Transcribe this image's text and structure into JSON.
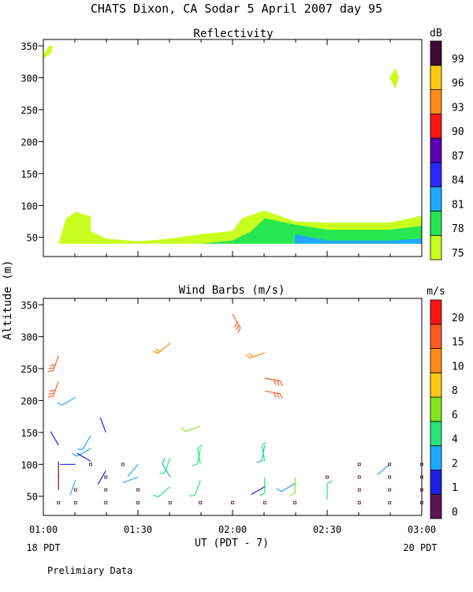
{
  "title": "CHATS Dixon, CA  Sodar   5 April 2007  day  95",
  "footer_note": "Prelimiary Data",
  "y_axis_label": "Altitude (m)",
  "x_axis": {
    "label": "UT  (PDT - 7)",
    "ticks": [
      "01:00",
      "01:30",
      "02:00",
      "02:30",
      "03:00"
    ],
    "left_local": "18 PDT",
    "right_local": "20 PDT",
    "range_hours": [
      1.0,
      3.0
    ]
  },
  "colors": {
    "dB": [
      "#c8ff1e",
      "#28e650",
      "#1eaaff",
      "#2828ff",
      "#5a00b4",
      "#ff1414",
      "#ff8c14",
      "#ffc814",
      "#3c0a32"
    ],
    "wind": [
      "#5a1450",
      "#1e1ee6",
      "#1eaaff",
      "#28e678",
      "#82e61e",
      "#ffc814",
      "#ff8c14",
      "#ff5a1e",
      "#ff1414"
    ]
  },
  "chart_data": [
    {
      "type": "heatmap",
      "title": "Reflectivity",
      "colorbar_label": "dB",
      "colorbar_levels": [
        75,
        78,
        81,
        84,
        87,
        90,
        93,
        96,
        99
      ],
      "ylim": [
        20,
        360
      ],
      "yticks": [
        50,
        100,
        150,
        200,
        250,
        300,
        350
      ],
      "xlim": [
        1.0,
        3.0
      ],
      "regions": [
        {
          "level": 75,
          "points": [
            [
              1.0,
              335
            ],
            [
              1.03,
              350
            ],
            [
              1.05,
              350
            ],
            [
              1.04,
              338
            ],
            [
              1.0,
              330
            ]
          ]
        },
        {
          "level": 75,
          "points": [
            [
              2.83,
              300
            ],
            [
              2.86,
              315
            ],
            [
              2.88,
              300
            ],
            [
              2.86,
              283
            ]
          ]
        },
        {
          "level": 75,
          "points": [
            [
              1.08,
              40
            ],
            [
              1.12,
              80
            ],
            [
              1.17,
              90
            ],
            [
              1.25,
              83
            ],
            [
              1.25,
              60
            ],
            [
              1.33,
              48
            ],
            [
              1.5,
              44
            ],
            [
              1.67,
              48
            ],
            [
              1.83,
              55
            ],
            [
              2.0,
              60
            ],
            [
              2.05,
              80
            ],
            [
              2.17,
              92
            ],
            [
              2.33,
              75
            ],
            [
              2.5,
              73
            ],
            [
              2.83,
              73
            ],
            [
              3.0,
              84
            ],
            [
              3.0,
              40
            ]
          ]
        },
        {
          "level": 78,
          "points": [
            [
              1.83,
              40
            ],
            [
              2.0,
              45
            ],
            [
              2.1,
              60
            ],
            [
              2.17,
              80
            ],
            [
              2.33,
              70
            ],
            [
              2.5,
              62
            ],
            [
              2.83,
              62
            ],
            [
              3.0,
              68
            ],
            [
              3.0,
              40
            ]
          ]
        },
        {
          "level": 81,
          "points": [
            [
              2.33,
              40
            ],
            [
              2.33,
              55
            ],
            [
              2.5,
              45
            ],
            [
              2.83,
              45
            ],
            [
              3.0,
              48
            ],
            [
              3.0,
              40
            ]
          ]
        }
      ]
    },
    {
      "type": "scatter",
      "title": "Wind Barbs (m/s)",
      "colorbar_label": "m/s",
      "colorbar_levels": [
        0,
        1,
        2,
        4,
        6,
        8,
        10,
        15,
        20
      ],
      "ylim": [
        20,
        360
      ],
      "yticks": [
        50,
        100,
        150,
        200,
        250,
        300,
        350
      ],
      "xlim": [
        1.0,
        3.0
      ],
      "barbs": [
        {
          "t": 1.08,
          "z": 270,
          "dir": 200,
          "spd": 16
        },
        {
          "t": 1.08,
          "z": 230,
          "dir": 200,
          "spd": 15
        },
        {
          "t": 1.17,
          "z": 205,
          "dir": 240,
          "spd": 3
        },
        {
          "t": 1.08,
          "z": 130,
          "dir": 330,
          "spd": 1
        },
        {
          "t": 1.17,
          "z": 100,
          "dir": 270,
          "spd": 1
        },
        {
          "t": 1.08,
          "z": 80,
          "dir": 0,
          "spd": 0
        },
        {
          "t": 1.17,
          "z": 75,
          "dir": 200,
          "spd": 2
        },
        {
          "t": 1.08,
          "z": 60,
          "dir": 0,
          "spd": 0
        },
        {
          "t": 1.25,
          "z": 145,
          "dir": 210,
          "spd": 3
        },
        {
          "t": 1.25,
          "z": 125,
          "dir": 240,
          "spd": 3
        },
        {
          "t": 1.25,
          "z": 105,
          "dir": 300,
          "spd": 1
        },
        {
          "t": 1.33,
          "z": 150,
          "dir": 340,
          "spd": 1
        },
        {
          "t": 1.33,
          "z": 90,
          "dir": 210,
          "spd": 1
        },
        {
          "t": 1.5,
          "z": 100,
          "dir": 220,
          "spd": 2
        },
        {
          "t": 1.5,
          "z": 80,
          "dir": 250,
          "spd": 2
        },
        {
          "t": 1.67,
          "z": 290,
          "dir": 230,
          "spd": 12
        },
        {
          "t": 1.67,
          "z": 110,
          "dir": 200,
          "spd": 5
        },
        {
          "t": 1.67,
          "z": 80,
          "dir": 330,
          "spd": 3
        },
        {
          "t": 1.67,
          "z": 65,
          "dir": 230,
          "spd": 4
        },
        {
          "t": 1.83,
          "z": 160,
          "dir": 250,
          "spd": 7
        },
        {
          "t": 1.83,
          "z": 125,
          "dir": 190,
          "spd": 5
        },
        {
          "t": 1.83,
          "z": 100,
          "dir": 350,
          "spd": 5
        },
        {
          "t": 1.83,
          "z": 75,
          "dir": 200,
          "spd": 5
        },
        {
          "t": 2.0,
          "z": 335,
          "dir": 150,
          "spd": 18
        },
        {
          "t": 2.17,
          "z": 275,
          "dir": 250,
          "spd": 10
        },
        {
          "t": 2.17,
          "z": 235,
          "dir": 100,
          "spd": 18
        },
        {
          "t": 2.17,
          "z": 215,
          "dir": 100,
          "spd": 18
        },
        {
          "t": 2.17,
          "z": 130,
          "dir": 190,
          "spd": 3
        },
        {
          "t": 2.17,
          "z": 105,
          "dir": 350,
          "spd": 4
        },
        {
          "t": 2.17,
          "z": 80,
          "dir": 180,
          "spd": 4
        },
        {
          "t": 2.17,
          "z": 65,
          "dir": 240,
          "spd": 1
        },
        {
          "t": 2.33,
          "z": 80,
          "dir": 180,
          "spd": 6
        },
        {
          "t": 2.33,
          "z": 70,
          "dir": 240,
          "spd": 3
        },
        {
          "t": 2.5,
          "z": 45,
          "dir": 0,
          "spd": 4
        },
        {
          "t": 2.83,
          "z": 100,
          "dir": 230,
          "spd": 2
        }
      ],
      "calm_points": [
        [
          1.08,
          40
        ],
        [
          1.17,
          40
        ],
        [
          1.33,
          40
        ],
        [
          1.5,
          40
        ],
        [
          1.67,
          40
        ],
        [
          1.83,
          40
        ],
        [
          2.0,
          40
        ],
        [
          2.17,
          40
        ],
        [
          2.33,
          40
        ],
        [
          2.67,
          40
        ],
        [
          2.83,
          40
        ],
        [
          3.0,
          40
        ],
        [
          1.17,
          60
        ],
        [
          1.33,
          60
        ],
        [
          1.5,
          60
        ],
        [
          2.67,
          60
        ],
        [
          2.83,
          60
        ],
        [
          3.0,
          60
        ],
        [
          1.33,
          80
        ],
        [
          2.5,
          80
        ],
        [
          2.67,
          80
        ],
        [
          2.83,
          80
        ],
        [
          3.0,
          80
        ],
        [
          1.25,
          100
        ],
        [
          1.42,
          100
        ],
        [
          2.67,
          100
        ],
        [
          2.83,
          100
        ],
        [
          3.0,
          100
        ]
      ]
    }
  ]
}
